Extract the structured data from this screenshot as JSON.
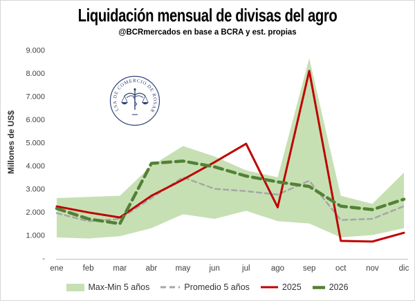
{
  "chart_data": {
    "type": "line",
    "title": "Liquidación mensual de divisas del agro",
    "subtitle": "@BCRmercados en base a BCRA y est. propias",
    "ylabel": "Millones de US$",
    "xlabel": "",
    "watermark": "BOLSA DE COMERCIO DE ROSARIO",
    "categories": [
      "ene",
      "feb",
      "mar",
      "abr",
      "may",
      "jun",
      "jul",
      "ago",
      "sep",
      "oct",
      "nov",
      "dic"
    ],
    "ylim": [
      0,
      9000
    ],
    "ytick_interval": 1000,
    "ytick_labels": [
      "9.000",
      "8.000",
      "7.000",
      "6.000",
      "5.000",
      "4.000",
      "3.000",
      "2.000",
      "1.000",
      "-"
    ],
    "grid": false,
    "legend_position": "bottom",
    "band": {
      "name": "Max-Min 5 años",
      "color": "#c6e0b4",
      "max": [
        2600,
        2650,
        2700,
        4000,
        4850,
        4400,
        3800,
        3500,
        8650,
        2700,
        2350,
        3700
      ],
      "min": [
        900,
        850,
        950,
        1300,
        1900,
        1700,
        2050,
        1600,
        1500,
        900,
        1000,
        1300
      ]
    },
    "series": [
      {
        "name": "Promedio 5 años",
        "color": "#a6a6a6",
        "style": "dashed",
        "dash": "7 5",
        "width": 2.5,
        "values": [
          1950,
          1600,
          1700,
          2600,
          3500,
          3000,
          2900,
          2750,
          3350,
          1650,
          1700,
          2250
        ]
      },
      {
        "name": "2025",
        "color": "#c00000",
        "style": "solid",
        "dash": "",
        "width": 3,
        "values": [
          2240,
          1980,
          1760,
          2700,
          3400,
          4150,
          4950,
          2200,
          8100,
          750,
          720,
          1100
        ]
      },
      {
        "name": "2026",
        "color": "#538135",
        "style": "dashed",
        "dash": "12 7",
        "width": 4.5,
        "values": [
          2150,
          1700,
          1490,
          4100,
          4200,
          3950,
          3550,
          3300,
          3100,
          2250,
          2100,
          2550
        ]
      }
    ],
    "axis_color": "#bfbfbf",
    "seal_color": "#2e4272"
  }
}
